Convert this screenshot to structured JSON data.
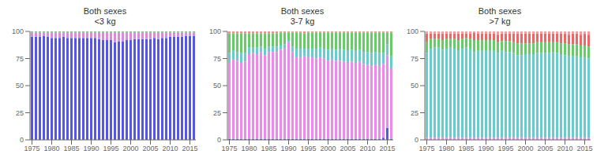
{
  "chart_data": [
    {
      "type": "bar",
      "title": "Both sexes\n<3 kg",
      "stacked": true,
      "grid": false,
      "x": [
        1975,
        1976,
        1977,
        1978,
        1979,
        1980,
        1981,
        1982,
        1983,
        1984,
        1985,
        1986,
        1987,
        1988,
        1989,
        1990,
        1991,
        1992,
        1993,
        1994,
        1995,
        1996,
        1997,
        1998,
        1999,
        2000,
        2001,
        2002,
        2003,
        2004,
        2005,
        2006,
        2007,
        2008,
        2009,
        2010,
        2011,
        2012,
        2013,
        2014,
        2015,
        2016
      ],
      "xlim": [
        1974.5,
        2016.5
      ],
      "xticks": [
        1975,
        1980,
        1985,
        1990,
        1995,
        2000,
        2005,
        2010,
        2015
      ],
      "ylim": [
        0,
        100
      ],
      "yticks": [
        0,
        25,
        50,
        75,
        100
      ],
      "series": [
        {
          "color": "#5555ee",
          "values": [
            95,
            95,
            95,
            96,
            95,
            94,
            94,
            94,
            95,
            94,
            94,
            94,
            94,
            94,
            94,
            94,
            94,
            93,
            92,
            92,
            92,
            90,
            91,
            91,
            92,
            92,
            93,
            93,
            93,
            93,
            93,
            94,
            93,
            94,
            94,
            95,
            95,
            95,
            95,
            96,
            96,
            96
          ]
        },
        {
          "color": "#dd88dd",
          "values": [
            4,
            4,
            4,
            3,
            4,
            5,
            5,
            5,
            4,
            5,
            5,
            5,
            5,
            5,
            5,
            5,
            5,
            6,
            7,
            7,
            7,
            9,
            8,
            8,
            7,
            7,
            6,
            6,
            6,
            6,
            6,
            5,
            6,
            5,
            5,
            4,
            4,
            4,
            4,
            3,
            3,
            3
          ]
        },
        {
          "color": "#66cc66",
          "values": [
            1,
            1,
            1,
            1,
            1,
            1,
            1,
            1,
            1,
            1,
            1,
            1,
            1,
            1,
            1,
            1,
            1,
            1,
            1,
            1,
            1,
            1,
            1,
            1,
            1,
            1,
            1,
            1,
            1,
            1,
            1,
            1,
            1,
            1,
            1,
            1,
            1,
            1,
            1,
            1,
            1,
            1
          ]
        },
        {
          "color": "#ff8888",
          "values": [
            0,
            0,
            0,
            0,
            0,
            0,
            0,
            0,
            0,
            0,
            0,
            0,
            0,
            0,
            0,
            0,
            0,
            0,
            0,
            0,
            0,
            0,
            0,
            0,
            0,
            0,
            0,
            0,
            0,
            0,
            0,
            0,
            0,
            0,
            0,
            0,
            0,
            0,
            0,
            0,
            0,
            0
          ]
        },
        {
          "color": "#888888",
          "values": [
            0,
            0,
            0,
            0,
            0,
            0,
            0,
            0,
            0,
            0,
            0,
            0,
            0,
            0,
            0,
            0,
            0,
            0,
            0,
            0,
            0,
            0,
            0,
            0,
            0,
            0,
            0,
            0,
            0,
            0,
            0,
            0,
            0,
            0,
            0,
            0,
            0,
            0,
            0,
            0,
            0,
            0
          ]
        }
      ]
    },
    {
      "type": "bar",
      "title": "Both sexes\n3-7 kg",
      "stacked": true,
      "grid": false,
      "x": [
        1975,
        1976,
        1977,
        1978,
        1979,
        1980,
        1981,
        1982,
        1983,
        1984,
        1985,
        1986,
        1987,
        1988,
        1989,
        1990,
        1991,
        1992,
        1993,
        1994,
        1995,
        1996,
        1997,
        1998,
        1999,
        2000,
        2001,
        2002,
        2003,
        2004,
        2005,
        2006,
        2007,
        2008,
        2009,
        2010,
        2011,
        2012,
        2013,
        2014,
        2015,
        2016
      ],
      "xlim": [
        1974.5,
        2016.5
      ],
      "xticks": [
        1975,
        1980,
        1985,
        1990,
        1995,
        2000,
        2005,
        2010,
        2015
      ],
      "ylim": [
        0,
        100
      ],
      "yticks": [
        0,
        25,
        50,
        75,
        100
      ],
      "series": [
        {
          "color": "#5555ee",
          "values": [
            1,
            1,
            1,
            1,
            1,
            1,
            1,
            1,
            1,
            1,
            1,
            1,
            1,
            1,
            1,
            1,
            1,
            1,
            1,
            1,
            1,
            1,
            1,
            1,
            1,
            1,
            1,
            1,
            1,
            1,
            1,
            1,
            1,
            1,
            1,
            1,
            1,
            1,
            1,
            2,
            11,
            1
          ]
        },
        {
          "color": "#ee88ee",
          "values": [
            70,
            73,
            72,
            70,
            71,
            78,
            79,
            78,
            80,
            77,
            80,
            80,
            80,
            82,
            83,
            89,
            80,
            75,
            75,
            76,
            75,
            75,
            74,
            75,
            74,
            72,
            73,
            72,
            72,
            71,
            70,
            71,
            70,
            71,
            69,
            68,
            67,
            68,
            67,
            68,
            67,
            65
          ]
        },
        {
          "color": "#66cccc",
          "values": [
            9,
            8,
            8,
            9,
            8,
            6,
            5,
            6,
            5,
            6,
            5,
            5,
            5,
            4,
            4,
            2,
            5,
            8,
            8,
            7,
            8,
            8,
            9,
            9,
            9,
            10,
            10,
            10,
            11,
            11,
            11,
            11,
            11,
            11,
            11,
            12,
            12,
            12,
            12,
            10,
            10,
            11
          ]
        },
        {
          "color": "#66cc66",
          "values": [
            18,
            16,
            17,
            18,
            18,
            13,
            13,
            13,
            12,
            14,
            12,
            12,
            12,
            12,
            11,
            7,
            13,
            15,
            15,
            14,
            15,
            15,
            15,
            14,
            15,
            16,
            15,
            16,
            15,
            16,
            17,
            16,
            17,
            16,
            18,
            18,
            19,
            18,
            19,
            19,
            11,
            22
          ]
        },
        {
          "color": "#ff8888",
          "values": [
            2,
            2,
            2,
            2,
            2,
            2,
            2,
            2,
            2,
            2,
            2,
            2,
            2,
            1,
            1,
            1,
            1,
            1,
            1,
            2,
            1,
            1,
            1,
            1,
            1,
            1,
            1,
            1,
            1,
            1,
            1,
            1,
            1,
            1,
            1,
            1,
            1,
            1,
            1,
            1,
            1,
            1
          ]
        }
      ]
    },
    {
      "type": "bar",
      "title": "Both sexes\n>7 kg",
      "stacked": true,
      "grid": false,
      "x": [
        1975,
        1976,
        1977,
        1978,
        1979,
        1980,
        1981,
        1982,
        1983,
        1984,
        1985,
        1986,
        1987,
        1988,
        1989,
        1990,
        1991,
        1992,
        1993,
        1994,
        1995,
        1996,
        1997,
        1998,
        1999,
        2000,
        2001,
        2002,
        2003,
        2004,
        2005,
        2006,
        2007,
        2008,
        2009,
        2010,
        2011,
        2012,
        2013,
        2014,
        2015,
        2016
      ],
      "xlim": [
        1974.5,
        2016.5
      ],
      "xticks": [
        1975,
        1980,
        1985,
        1990,
        1995,
        2000,
        2005,
        2010,
        2015
      ],
      "ylim": [
        0,
        100
      ],
      "yticks": [
        0,
        25,
        50,
        75,
        100
      ],
      "series": [
        {
          "color": "#ee88ee",
          "values": [
            2,
            2,
            2,
            2,
            2,
            2,
            2,
            2,
            2,
            2,
            2,
            2,
            2,
            2,
            2,
            2,
            2,
            2,
            2,
            2,
            2,
            2,
            2,
            2,
            2,
            2,
            2,
            2,
            2,
            2,
            2,
            2,
            2,
            2,
            2,
            2,
            2,
            2,
            2,
            2,
            2,
            2
          ]
        },
        {
          "color": "#66cccc",
          "values": [
            78,
            82,
            83,
            83,
            81,
            82,
            83,
            82,
            80,
            82,
            83,
            82,
            79,
            80,
            80,
            80,
            80,
            80,
            78,
            80,
            79,
            79,
            78,
            76,
            76,
            77,
            77,
            77,
            78,
            78,
            78,
            78,
            79,
            78,
            77,
            76,
            75,
            75,
            75,
            74,
            74,
            73
          ]
        },
        {
          "color": "#66cc66",
          "values": [
            10,
            9,
            8,
            8,
            9,
            9,
            8,
            9,
            10,
            9,
            9,
            9,
            11,
            10,
            10,
            10,
            10,
            10,
            10,
            9,
            10,
            10,
            10,
            11,
            11,
            10,
            10,
            10,
            10,
            10,
            10,
            10,
            9,
            10,
            10,
            11,
            11,
            11,
            11,
            11,
            11,
            11
          ]
        },
        {
          "color": "#ee6666",
          "values": [
            8,
            5,
            5,
            5,
            6,
            5,
            5,
            5,
            6,
            5,
            4,
            5,
            7,
            6,
            6,
            6,
            6,
            6,
            7,
            7,
            7,
            7,
            8,
            9,
            9,
            9,
            9,
            9,
            8,
            8,
            8,
            8,
            8,
            8,
            9,
            9,
            9,
            10,
            10,
            10,
            11,
            11
          ]
        },
        {
          "color": "#ff9999",
          "values": [
            2,
            2,
            2,
            2,
            2,
            2,
            2,
            2,
            2,
            2,
            2,
            2,
            1,
            2,
            2,
            2,
            2,
            2,
            3,
            2,
            2,
            2,
            2,
            2,
            2,
            2,
            2,
            2,
            2,
            2,
            2,
            2,
            2,
            2,
            2,
            2,
            3,
            2,
            2,
            3,
            2,
            3
          ]
        }
      ]
    }
  ]
}
